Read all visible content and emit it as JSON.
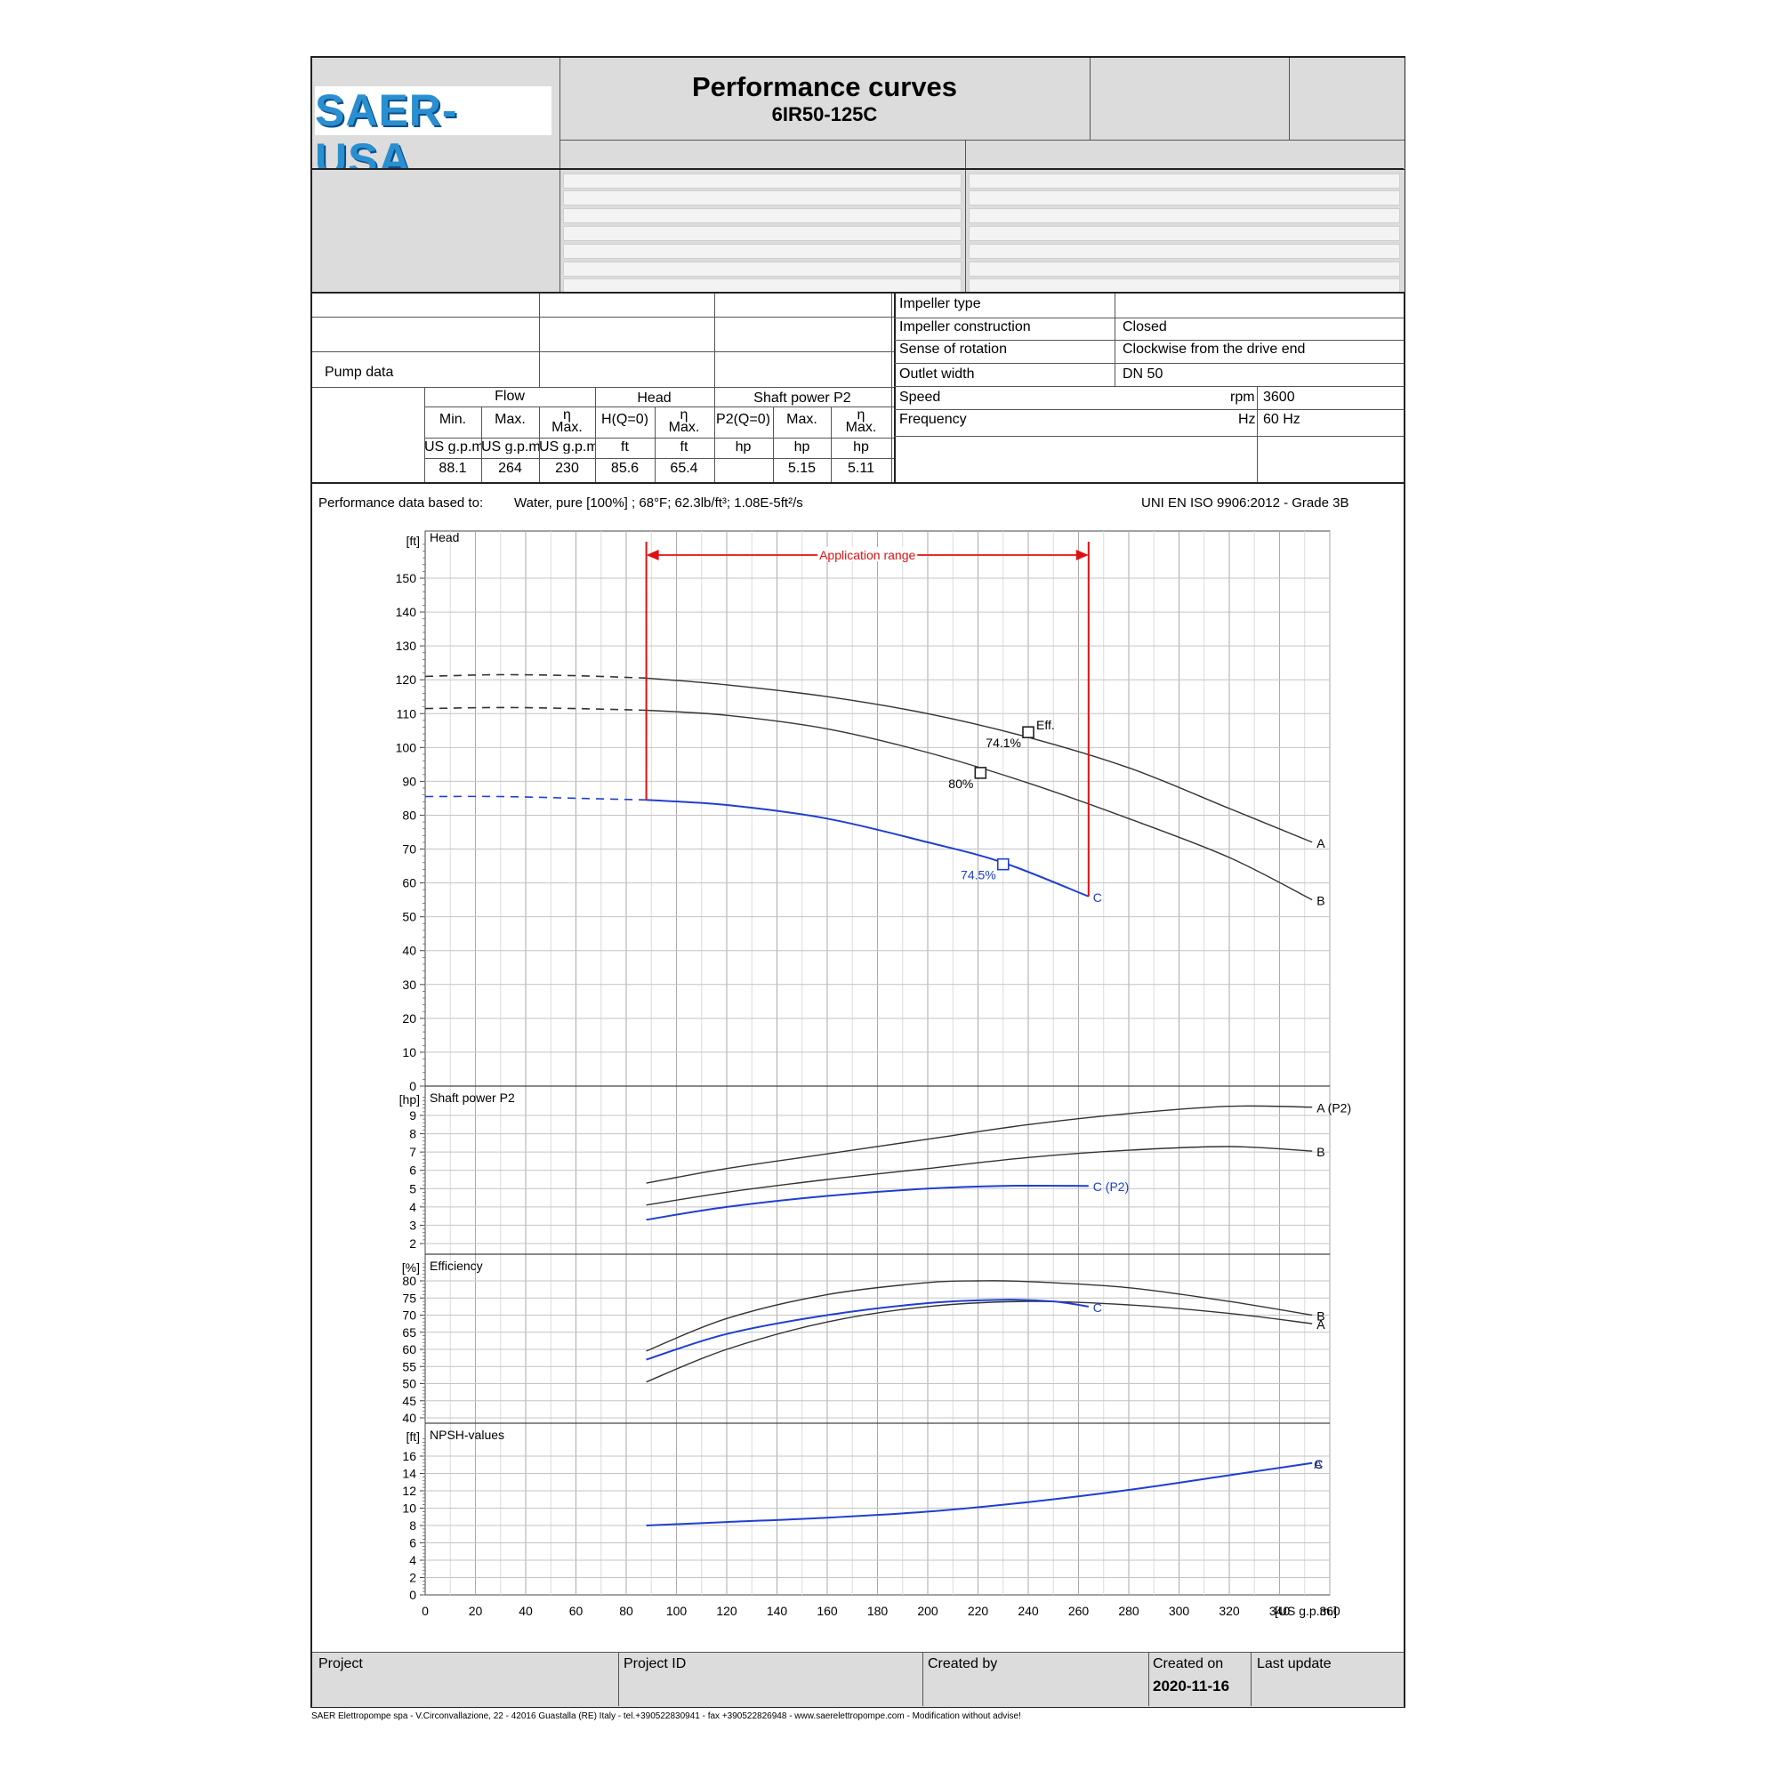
{
  "header": {
    "logo": "SAER-USA",
    "title": "Performance curves",
    "model": "6IR50-125C"
  },
  "pump": {
    "pump_data_label": "Pump data",
    "flow_label": "Flow",
    "head_label": "Head",
    "shaft_label": "Shaft power P2",
    "cols": [
      "Min.",
      "Max.",
      "η\nMax.",
      "H(Q=0)",
      "η\nMax.",
      "P2(Q=0)",
      "Max.",
      "η\nMax."
    ],
    "units": [
      "US g.p.m.",
      "US g.p.m.",
      "US g.p.m.",
      "ft",
      "ft",
      "hp",
      "hp",
      "hp"
    ],
    "values": [
      "88.1",
      "264",
      "230",
      "85.6",
      "65.4",
      "",
      "5.15",
      "5.11"
    ]
  },
  "specs": [
    {
      "label": "Impeller type",
      "value": "",
      "unit": ""
    },
    {
      "label": "Impeller construction",
      "value": "Closed",
      "unit": ""
    },
    {
      "label": "Sense of rotation",
      "value": "Clockwise from the drive end",
      "unit": ""
    },
    {
      "label": "Outlet width",
      "value": "DN 50",
      "unit": ""
    },
    {
      "label": "Speed",
      "value": "3600",
      "unit": "rpm"
    },
    {
      "label": "Frequency",
      "value": "60 Hz",
      "unit": "Hz"
    }
  ],
  "basis": {
    "label": "Performance data based to:",
    "fluid": "Water, pure [100%] ; 68°F; 62.3lb/ft³; 1.08E-5ft²/s",
    "standard": "UNI EN ISO 9906:2012 - Grade 3B"
  },
  "footer": {
    "project": "Project",
    "project_id": "Project ID",
    "created_by": "Created by",
    "created_on": "Created on",
    "created_on_value": "2020-11-16",
    "last_update": "Last update",
    "address": "SAER Elettropompe spa - V.Circonvallazione, 22 - 42016 Guastalla (RE) Italy - tel.+390522830941 - fax +390522826948 - www.saerelettropompe.com - Modification without advise!"
  },
  "colors": {
    "blue": "#1f3fd0",
    "black": "#333333",
    "red": "#e01010",
    "grid": "#bbbbbb"
  },
  "chart_data": [
    {
      "type": "line",
      "title": "Head",
      "ylabel": "[ft]",
      "xlabel": "[US g.p.m.]",
      "xlim": [
        0,
        360
      ],
      "ylim": [
        0,
        160
      ],
      "x_ticks": [
        0,
        20,
        40,
        60,
        80,
        100,
        120,
        140,
        160,
        180,
        200,
        220,
        240,
        260,
        280,
        300,
        320,
        340,
        360
      ],
      "y_ticks": [
        0,
        10,
        20,
        30,
        40,
        50,
        60,
        70,
        80,
        90,
        100,
        110,
        120,
        130,
        140,
        150
      ],
      "application_range": {
        "label": "Application range",
        "x": [
          88,
          264
        ]
      },
      "series": [
        {
          "name": "A",
          "color": "black",
          "dashed": {
            "x": [
              0,
              30,
              60,
              88
            ],
            "y": [
              121,
              121.5,
              121.2,
              120.5
            ]
          },
          "x": [
            88,
            120,
            160,
            200,
            240,
            280,
            320,
            353
          ],
          "y": [
            120.5,
            118.5,
            115,
            110,
            103,
            94,
            82,
            72
          ]
        },
        {
          "name": "B",
          "color": "black",
          "dashed": {
            "x": [
              0,
              30,
              60,
              88
            ],
            "y": [
              111.5,
              111.8,
              111.5,
              111
            ]
          },
          "x": [
            88,
            120,
            160,
            200,
            240,
            280,
            320,
            353
          ],
          "y": [
            111,
            109.5,
            105.5,
            98.5,
            89.5,
            79,
            67.5,
            55
          ]
        },
        {
          "name": "C",
          "color": "blue",
          "dashed": {
            "x": [
              0,
              30,
              60,
              88
            ],
            "y": [
              85.5,
              85.5,
              85,
              84.5
            ]
          },
          "x": [
            88,
            120,
            160,
            200,
            230,
            264
          ],
          "y": [
            84.5,
            83,
            79,
            72,
            66,
            56
          ]
        }
      ],
      "points": [
        {
          "series": "A",
          "x": 240,
          "y": 104.5,
          "label": "74.1%",
          "tag": "Eff."
        },
        {
          "series": "B",
          "x": 221,
          "y": 92.5,
          "label": "80%"
        },
        {
          "series": "C",
          "x": 230,
          "y": 65.5,
          "label": "74.5%"
        }
      ]
    },
    {
      "type": "line",
      "title": "Shaft power P2",
      "ylabel": "[hp]",
      "xlim": [
        0,
        360
      ],
      "ylim": [
        2,
        10
      ],
      "y_ticks": [
        2,
        3,
        4,
        5,
        6,
        7,
        8,
        9
      ],
      "series": [
        {
          "name": "A (P2)",
          "color": "black",
          "x": [
            88,
            120,
            160,
            200,
            240,
            280,
            320,
            353
          ],
          "y": [
            5.3,
            6.1,
            6.9,
            7.7,
            8.5,
            9.1,
            9.5,
            9.45
          ]
        },
        {
          "name": "B",
          "color": "black",
          "x": [
            88,
            120,
            160,
            200,
            240,
            280,
            320,
            353
          ],
          "y": [
            4.1,
            4.8,
            5.5,
            6.1,
            6.7,
            7.1,
            7.3,
            7.05
          ]
        },
        {
          "name": "C (P2)",
          "color": "blue",
          "x": [
            88,
            120,
            160,
            200,
            230,
            264
          ],
          "y": [
            3.3,
            4.0,
            4.6,
            5.0,
            5.15,
            5.15
          ]
        }
      ]
    },
    {
      "type": "line",
      "title": "Efficiency",
      "ylabel": "[%]",
      "xlim": [
        0,
        360
      ],
      "ylim": [
        40,
        85
      ],
      "y_ticks": [
        40,
        45,
        50,
        55,
        60,
        65,
        70,
        75,
        80
      ],
      "series": [
        {
          "name": "B",
          "color": "black",
          "x": [
            88,
            120,
            160,
            200,
            220,
            240,
            280,
            320,
            353
          ],
          "y": [
            59.5,
            69,
            76,
            79.5,
            80,
            79.8,
            78,
            74,
            70
          ]
        },
        {
          "name": "A",
          "color": "black",
          "x": [
            88,
            120,
            160,
            200,
            240,
            280,
            320,
            353
          ],
          "y": [
            50.5,
            60,
            68,
            72.5,
            74,
            73,
            70.5,
            67.5
          ]
        },
        {
          "name": "C",
          "color": "blue",
          "x": [
            88,
            120,
            160,
            200,
            230,
            250,
            264
          ],
          "y": [
            57,
            64.5,
            70,
            73.5,
            74.5,
            74,
            72.5
          ]
        }
      ]
    },
    {
      "type": "line",
      "title": "NPSH-values",
      "ylabel": "[ft]",
      "xlim": [
        0,
        360
      ],
      "ylim": [
        0,
        18
      ],
      "y_ticks": [
        0,
        2,
        4,
        6,
        8,
        10,
        12,
        14,
        16
      ],
      "series": [
        {
          "name": "A",
          "color": "blue",
          "x": [
            88,
            120,
            160,
            200,
            240,
            280,
            320,
            353
          ],
          "y": [
            8.0,
            8.4,
            8.9,
            9.6,
            10.7,
            12.1,
            13.8,
            15.2
          ]
        }
      ],
      "end_labels": [
        "C",
        "A"
      ]
    }
  ]
}
